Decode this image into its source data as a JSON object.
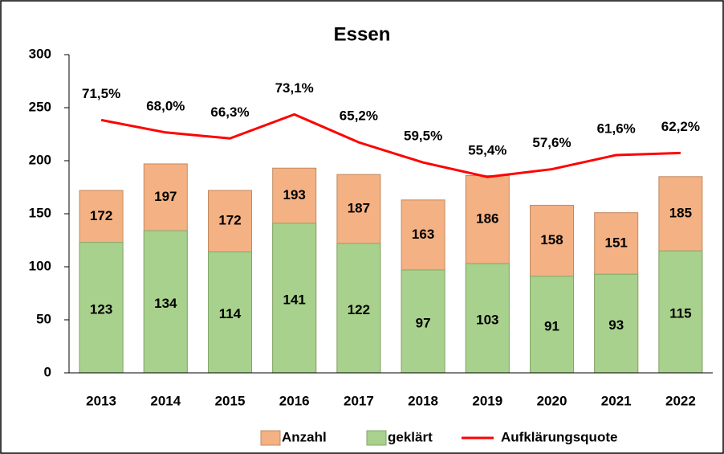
{
  "chart_data": {
    "type": "bar",
    "title": "Essen",
    "categories": [
      "2013",
      "2014",
      "2015",
      "2016",
      "2017",
      "2018",
      "2019",
      "2020",
      "2021",
      "2022"
    ],
    "series": [
      {
        "name": "Anzahl",
        "color": "#f4b183",
        "values": [
          172,
          197,
          172,
          193,
          187,
          163,
          186,
          158,
          151,
          185
        ]
      },
      {
        "name": "geklärt",
        "color": "#a9d18e",
        "values": [
          123,
          134,
          114,
          141,
          122,
          97,
          103,
          91,
          93,
          115
        ]
      },
      {
        "name": "Aufklärungsquote",
        "type": "line",
        "axis": "y2",
        "color": "#ff0000",
        "values": [
          71.5,
          68.0,
          66.3,
          73.1,
          65.2,
          59.5,
          55.4,
          57.6,
          61.6,
          62.2
        ],
        "value_labels": [
          "71,5%",
          "68,0%",
          "66,3%",
          "73,1%",
          "65,2%",
          "59,5%",
          "55,4%",
          "57,6%",
          "61,6%",
          "62,2%"
        ]
      }
    ],
    "ylim": [
      0,
      300
    ],
    "yticks": [
      0,
      50,
      100,
      150,
      200,
      250,
      300
    ],
    "y2lim": [
      0,
      90
    ],
    "grid": false,
    "legend": "bottom"
  }
}
